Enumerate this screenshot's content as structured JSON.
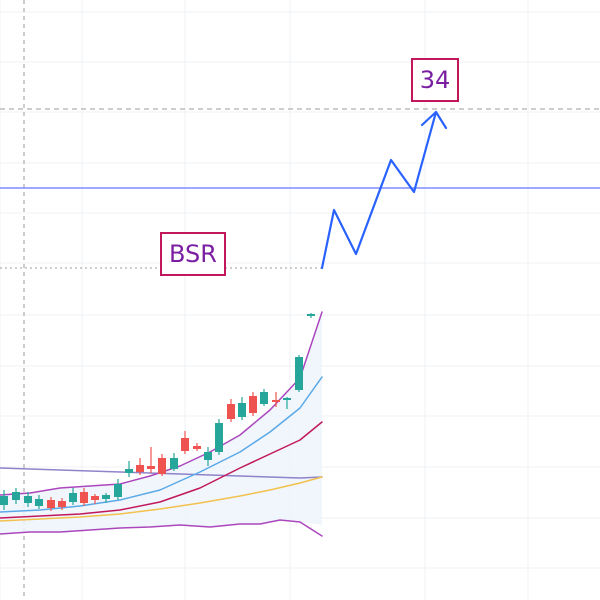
{
  "chart_data": {
    "type": "candlestick",
    "title": "",
    "xlabel": "",
    "ylabel": "",
    "grid": true,
    "legend": "none",
    "annotations": [
      {
        "name": "bsr-label",
        "text": "BSR"
      },
      {
        "name": "target-label",
        "text": "34"
      }
    ],
    "colors": {
      "up_candle": "#26a69a",
      "down_candle": "#ef5350",
      "projection": "#2962ff",
      "horizontal_line": "#7f8cff",
      "label_border": "#c2185b",
      "label_text": "#7b1fa2",
      "ma_fast": "#5aa9e6",
      "ma_mid": "#c2185b",
      "ma_slow": "#f2c14e",
      "bollinger_band": "#ab47bc"
    }
  },
  "annotations": {
    "bsr": "BSR",
    "target": "34"
  }
}
